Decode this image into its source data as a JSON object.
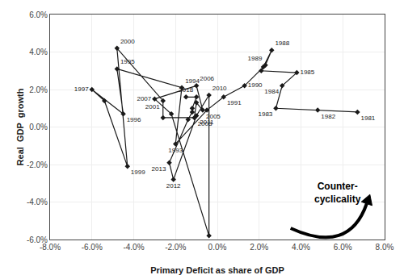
{
  "chart_data": {
    "type": "line",
    "xlabel": "Primary Deficit as share of GDP",
    "ylabel": "Real  GDP  growth",
    "x": [
      0.067,
      0.048,
      0.028,
      0.031,
      0.038,
      0.021,
      0.022,
      0.026,
      0.023,
      0.013,
      0.003,
      -0.005,
      -0.02,
      -0.017,
      -0.048,
      -0.045,
      -0.06,
      -0.054,
      -0.043,
      -0.048,
      -0.026,
      -0.026,
      -0.011,
      -0.01,
      -0.007,
      -0.01,
      -0.03,
      -0.022,
      -0.004,
      -0.004,
      -0.01,
      -0.021,
      -0.023,
      -0.014,
      -0.012,
      -0.012,
      -0.01,
      -0.015
    ],
    "values": [
      0.008,
      0.009,
      0.01,
      0.022,
      0.029,
      0.03,
      0.032,
      0.041,
      0.033,
      0.022,
      0.016,
      0.009,
      -0.009,
      0.021,
      0.031,
      0.007,
      0.02,
      0.014,
      -0.021,
      0.042,
      0.014,
      0.005,
      0.005,
      0.013,
      0.009,
      0.022,
      0.015,
      0.007,
      -0.058,
      0.017,
      0.006,
      -0.028,
      -0.019,
      0.004,
      0.008,
      0.01,
      0.016,
      0.016
    ],
    "point_labels": [
      "1981",
      "1982",
      "1983",
      "1984",
      "1985",
      null,
      null,
      "1988",
      "1989",
      "1990",
      "1991",
      null,
      "1993",
      "1994",
      "1995",
      "1996",
      "1997",
      null,
      "1999",
      "2000",
      "2001",
      null,
      "2003",
      null,
      "2005",
      "2006",
      "2007",
      null,
      "2009",
      "2010",
      "2011",
      "2012",
      "2013",
      null,
      null,
      null,
      null,
      "2018"
    ],
    "color": "#1a1a1a",
    "marker": "diamond",
    "xlim": [
      -0.08,
      0.08
    ],
    "ylim": [
      -0.06,
      0.06
    ],
    "xticks": [
      {
        "value": -0.08,
        "label": "-8.0%"
      },
      {
        "value": -0.06,
        "label": "-6.0%"
      },
      {
        "value": -0.04,
        "label": "-4.0%"
      },
      {
        "value": -0.02,
        "label": "-2.0%"
      },
      {
        "value": 0.0,
        "label": "0.0%"
      },
      {
        "value": 0.02,
        "label": "2.0%"
      },
      {
        "value": 0.04,
        "label": "4.0%"
      },
      {
        "value": 0.06,
        "label": "6.0%"
      },
      {
        "value": 0.08,
        "label": "8.0%"
      }
    ],
    "yticks": [
      {
        "value": -0.06,
        "label": "-6.0%"
      },
      {
        "value": -0.04,
        "label": "-4.0%"
      },
      {
        "value": -0.02,
        "label": "-2.0%"
      },
      {
        "value": 0.0,
        "label": "0.0%"
      },
      {
        "value": 0.02,
        "label": "2.0%"
      },
      {
        "value": 0.04,
        "label": "4.0%"
      },
      {
        "value": 0.06,
        "label": "6.0%"
      }
    ],
    "grid": true,
    "annotations": [
      "Counter-\ncyclicality"
    ]
  }
}
